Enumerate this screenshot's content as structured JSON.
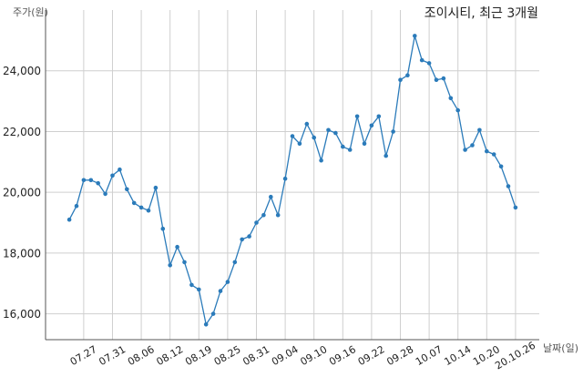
{
  "chart_data": {
    "type": "line",
    "title": "조이시티, 최근 3개월",
    "ylabel": "주가(원)",
    "xlabel": "날짜(일)",
    "x": [
      "07.23",
      "07.24",
      "07.27",
      "07.28",
      "07.29",
      "07.30",
      "07.31",
      "08.03",
      "08.04",
      "08.05",
      "08.06",
      "08.07",
      "08.10",
      "08.11",
      "08.12",
      "08.13",
      "08.14",
      "08.18",
      "08.19",
      "08.20",
      "08.21",
      "08.24",
      "08.25",
      "08.26",
      "08.27",
      "08.28",
      "08.31",
      "09.01",
      "09.02",
      "09.03",
      "09.04",
      "09.07",
      "09.08",
      "09.09",
      "09.10",
      "09.11",
      "09.14",
      "09.15",
      "09.16",
      "09.17",
      "09.18",
      "09.21",
      "09.22",
      "09.23",
      "09.24",
      "09.25",
      "09.28",
      "09.29",
      "10.05",
      "10.06",
      "10.07",
      "10.08",
      "10.12",
      "10.13",
      "10.14",
      "10.15",
      "10.16",
      "10.19",
      "10.20",
      "10.21",
      "10.22",
      "10.23",
      "10.26"
    ],
    "series": [
      {
        "marker": "circle",
        "values": [
          19100,
          19550,
          20400,
          20400,
          20300,
          19950,
          20550,
          20750,
          20100,
          19650,
          19500,
          19400,
          20150,
          18800,
          17600,
          18200,
          17700,
          16950,
          16800,
          15650,
          16000,
          16750,
          17050,
          17700,
          18450,
          18550,
          19000,
          19250,
          19850,
          19250,
          20450,
          21850,
          21600,
          22250,
          21800,
          21050,
          22050,
          21950,
          21500,
          21400,
          22500,
          21600,
          22200,
          22500,
          21200,
          22000,
          23700,
          23850,
          25150,
          24350,
          24250,
          23700,
          23750,
          23100,
          22700,
          21400,
          21550,
          22050,
          21350,
          21250,
          20850,
          20200,
          19500
        ]
      }
    ],
    "xticks": [
      "07.27",
      "07.31",
      "08.06",
      "08.12",
      "08.19",
      "08.25",
      "08.31",
      "09.04",
      "09.10",
      "09.16",
      "09.22",
      "09.28",
      "10.07",
      "10.14",
      "10.20",
      "20.10.26"
    ],
    "yticks": [
      {
        "value": 16000,
        "label": "16,000"
      },
      {
        "value": 18000,
        "label": "18,000"
      },
      {
        "value": 20000,
        "label": "20,000"
      },
      {
        "value": 22000,
        "label": "22,000"
      },
      {
        "value": 24000,
        "label": "24,000"
      }
    ],
    "ylim": [
      15150,
      26000
    ],
    "grid": true,
    "legend": "none"
  },
  "colors": {
    "line": "#2b7bba",
    "grid": "#cfcfcf",
    "axis": "#555555",
    "text": "#222222",
    "label": "#555555",
    "background": "#ffffff"
  }
}
